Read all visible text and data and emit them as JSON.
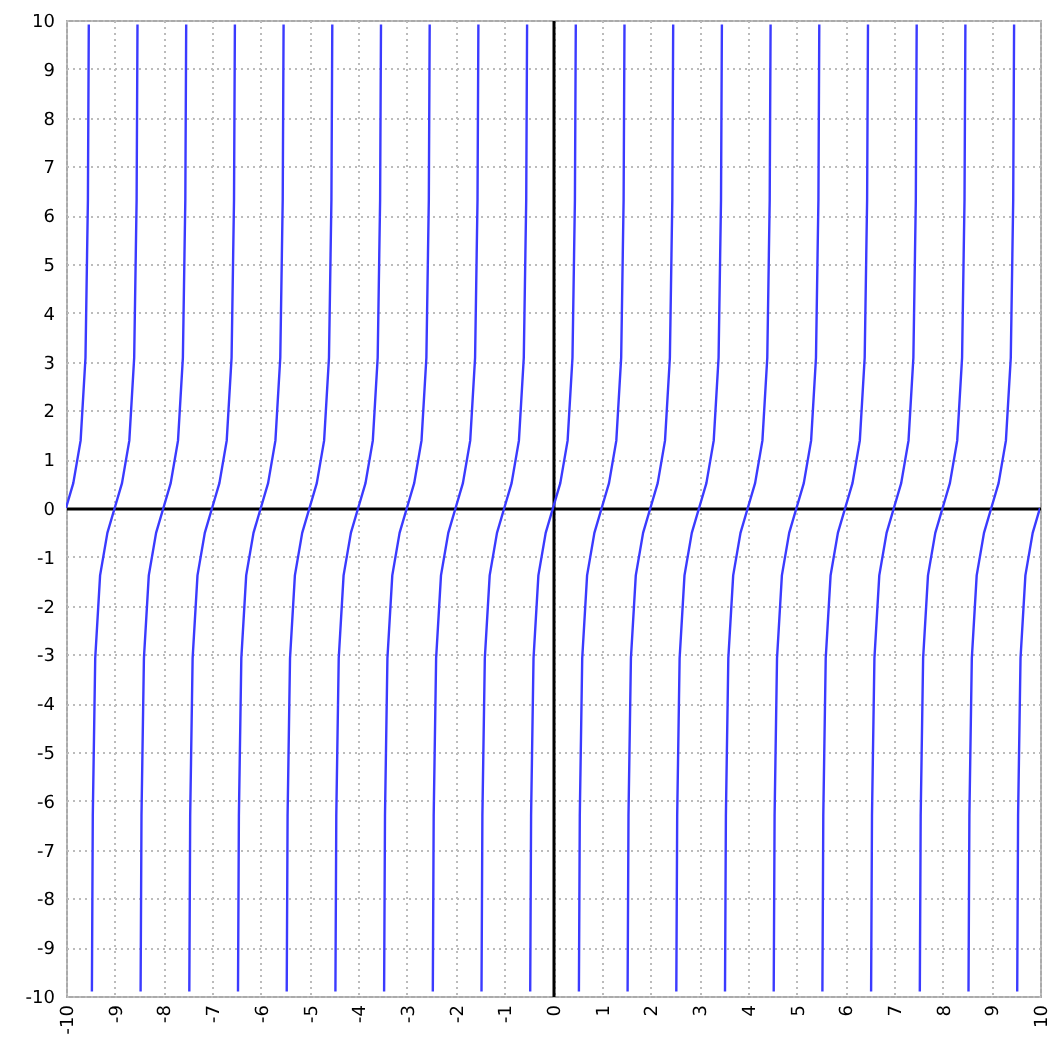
{
  "chart_data": {
    "type": "line",
    "x": [
      -10,
      -9.85,
      -9.7,
      -9.6,
      -9.55,
      -9.532,
      -9.5,
      -9.468,
      -9.45,
      -9.4,
      -9.3,
      -9.15,
      -9,
      -8.85,
      -8.7,
      -8.6,
      -8.55,
      -8.532,
      -8.5,
      -8.468,
      -8.45,
      -8.4,
      -8.3,
      -8.15,
      -8,
      -7.85,
      -7.7,
      -7.6,
      -7.55,
      -7.532,
      -7.5,
      -7.468,
      -7.45,
      -7.4,
      -7.3,
      -7.15,
      -7,
      -6.85,
      -6.7,
      -6.6,
      -6.55,
      -6.532,
      -6.5,
      -6.468,
      -6.45,
      -6.4,
      -6.3,
      -6.15,
      -6,
      -5.85,
      -5.7,
      -5.6,
      -5.55,
      -5.532,
      -5.5,
      -5.468,
      -5.45,
      -5.4,
      -5.3,
      -5.15,
      -5,
      -4.85,
      -4.7,
      -4.6,
      -4.55,
      -4.532,
      -4.5,
      -4.468,
      -4.45,
      -4.4,
      -4.3,
      -4.15,
      -4,
      -3.85,
      -3.7,
      -3.6,
      -3.55,
      -3.532,
      -3.5,
      -3.468,
      -3.45,
      -3.4,
      -3.3,
      -3.15,
      -3,
      -2.85,
      -2.7,
      -2.6,
      -2.55,
      -2.532,
      -2.5,
      -2.468,
      -2.45,
      -2.4,
      -2.3,
      -2.15,
      -2,
      -1.85,
      -1.7,
      -1.6,
      -1.55,
      -1.532,
      -1.5,
      -1.468,
      -1.45,
      -1.4,
      -1.3,
      -1.15,
      -1,
      -0.85,
      -0.7,
      -0.6,
      -0.55,
      -0.532,
      -0.5,
      -0.468,
      -0.45,
      -0.4,
      -0.3,
      -0.15,
      0,
      0.15,
      0.3,
      0.4,
      0.45,
      0.468,
      0.5,
      0.532,
      0.55,
      0.6,
      0.7,
      0.85,
      1,
      1.15,
      1.3,
      1.4,
      1.45,
      1.468,
      1.5,
      1.532,
      1.55,
      1.6,
      1.7,
      1.85,
      2,
      2.15,
      2.3,
      2.4,
      2.45,
      2.468,
      2.5,
      2.532,
      2.55,
      2.6,
      2.7,
      2.85,
      3,
      3.15,
      3.3,
      3.4,
      3.45,
      3.468,
      3.5,
      3.532,
      3.55,
      3.6,
      3.7,
      3.85,
      4,
      4.15,
      4.3,
      4.4,
      4.45,
      4.468,
      4.5,
      4.532,
      4.55,
      4.6,
      4.7,
      4.85,
      5,
      5.15,
      5.3,
      5.4,
      5.45,
      5.468,
      5.5,
      5.532,
      5.55,
      5.6,
      5.7,
      5.85,
      6,
      6.15,
      6.3,
      6.4,
      6.45,
      6.468,
      6.5,
      6.532,
      6.55,
      6.6,
      6.7,
      6.85,
      7,
      7.15,
      7.3,
      7.4,
      7.45,
      7.468,
      7.5,
      7.532,
      7.55,
      7.6,
      7.7,
      7.85,
      8,
      8.15,
      8.3,
      8.4,
      8.45,
      8.468,
      8.5,
      8.532,
      8.55,
      8.6,
      8.7,
      8.85,
      9,
      9.15,
      9.3,
      9.4,
      9.45,
      9.468,
      9.5,
      9.532,
      9.55,
      9.6,
      9.7,
      9.85,
      10
    ],
    "series": [
      {
        "color": "#3b3bff",
        "values": [
          0,
          0.51,
          1.38,
          3.08,
          6.31,
          9.91,
          null,
          -9.91,
          -6.31,
          -3.08,
          -1.38,
          -0.51,
          0,
          0.51,
          1.38,
          3.08,
          6.31,
          9.91,
          null,
          -9.91,
          -6.31,
          -3.08,
          -1.38,
          -0.51,
          0,
          0.51,
          1.38,
          3.08,
          6.31,
          9.91,
          null,
          -9.91,
          -6.31,
          -3.08,
          -1.38,
          -0.51,
          0,
          0.51,
          1.38,
          3.08,
          6.31,
          9.91,
          null,
          -9.91,
          -6.31,
          -3.08,
          -1.38,
          -0.51,
          0,
          0.51,
          1.38,
          3.08,
          6.31,
          9.91,
          null,
          -9.91,
          -6.31,
          -3.08,
          -1.38,
          -0.51,
          0,
          0.51,
          1.38,
          3.08,
          6.31,
          9.91,
          null,
          -9.91,
          -6.31,
          -3.08,
          -1.38,
          -0.51,
          0,
          0.51,
          1.38,
          3.08,
          6.31,
          9.91,
          null,
          -9.91,
          -6.31,
          -3.08,
          -1.38,
          -0.51,
          0,
          0.51,
          1.38,
          3.08,
          6.31,
          9.91,
          null,
          -9.91,
          -6.31,
          -3.08,
          -1.38,
          -0.51,
          0,
          0.51,
          1.38,
          3.08,
          6.31,
          9.91,
          null,
          -9.91,
          -6.31,
          -3.08,
          -1.38,
          -0.51,
          0,
          0.51,
          1.38,
          3.08,
          6.31,
          9.91,
          null,
          -9.91,
          -6.31,
          -3.08,
          -1.38,
          -0.51,
          0,
          0.51,
          1.38,
          3.08,
          6.31,
          9.91,
          null,
          -9.91,
          -6.31,
          -3.08,
          -1.38,
          -0.51,
          0,
          0.51,
          1.38,
          3.08,
          6.31,
          9.91,
          null,
          -9.91,
          -6.31,
          -3.08,
          -1.38,
          -0.51,
          0,
          0.51,
          1.38,
          3.08,
          6.31,
          9.91,
          null,
          -9.91,
          -6.31,
          -3.08,
          -1.38,
          -0.51,
          0,
          0.51,
          1.38,
          3.08,
          6.31,
          9.91,
          null,
          -9.91,
          -6.31,
          -3.08,
          -1.38,
          -0.51,
          0,
          0.51,
          1.38,
          3.08,
          6.31,
          9.91,
          null,
          -9.91,
          -6.31,
          -3.08,
          -1.38,
          -0.51,
          0,
          0.51,
          1.38,
          3.08,
          6.31,
          9.91,
          null,
          -9.91,
          -6.31,
          -3.08,
          -1.38,
          -0.51,
          0,
          0.51,
          1.38,
          3.08,
          6.31,
          9.91,
          null,
          -9.91,
          -6.31,
          -3.08,
          -1.38,
          -0.51,
          0,
          0.51,
          1.38,
          3.08,
          6.31,
          9.91,
          null,
          -9.91,
          -6.31,
          -3.08,
          -1.38,
          -0.51,
          0,
          0.51,
          1.38,
          3.08,
          6.31,
          9.91,
          null,
          -9.91,
          -6.31,
          -3.08,
          -1.38,
          -0.51,
          0,
          0.51,
          1.38,
          3.08,
          6.31,
          9.91,
          null,
          -9.91,
          -6.31,
          -3.08,
          -1.38,
          -0.51,
          0
        ]
      }
    ],
    "xlim": [
      -10,
      10
    ],
    "ylim": [
      -10,
      10
    ],
    "xticks": [
      -10,
      -9,
      -8,
      -7,
      -6,
      -5,
      -4,
      -3,
      -2,
      -1,
      0,
      1,
      2,
      3,
      4,
      5,
      6,
      7,
      8,
      9,
      10
    ],
    "yticks": [
      -10,
      -9,
      -8,
      -7,
      -6,
      -5,
      -4,
      -3,
      -2,
      -1,
      0,
      1,
      2,
      3,
      4,
      5,
      6,
      7,
      8,
      9,
      10
    ],
    "grid": true
  }
}
